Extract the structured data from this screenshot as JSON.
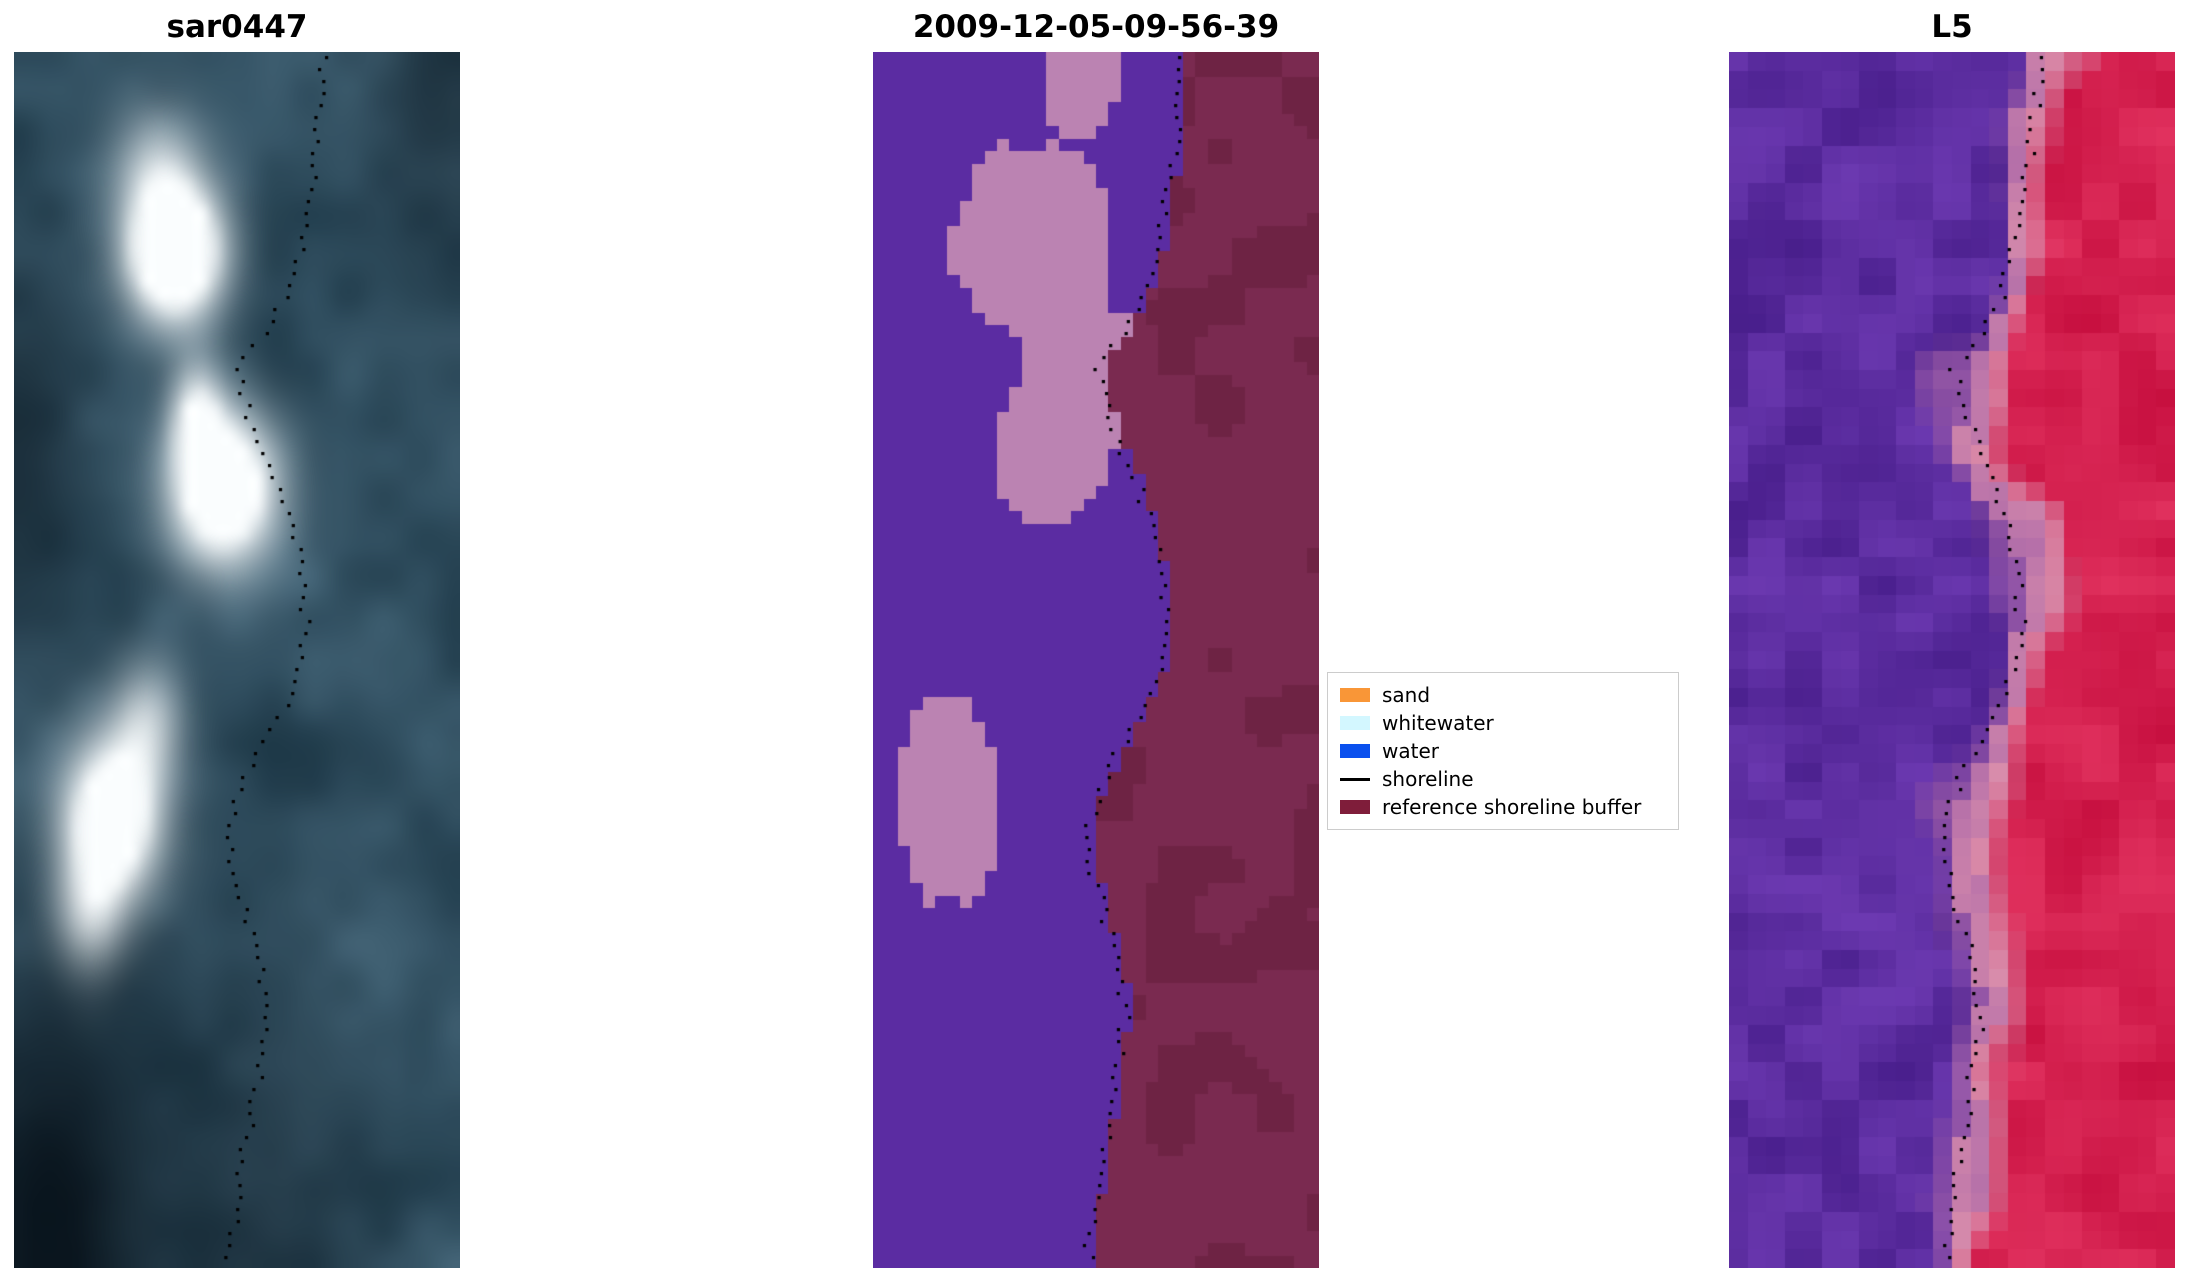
{
  "legend": {
    "items": [
      {
        "label": "sand",
        "color": "#f99637",
        "type": "patch"
      },
      {
        "label": "whitewater",
        "color": "#d3f7ff",
        "type": "patch"
      },
      {
        "label": "water",
        "color": "#0a50ee",
        "type": "patch"
      },
      {
        "label": "shoreline",
        "color": "#000000",
        "type": "line"
      },
      {
        "label": "reference shoreline buffer",
        "color": "#7f1d3a",
        "type": "patch"
      }
    ]
  },
  "chart_data": {
    "type": "heatmap",
    "subtype": "satellite-image-panels",
    "description": "Three vertical coastal image panels (SAR image, classified image, Landsat-5 image) sharing one dotted black shoreline overlay; legend between panels 2 and 3.",
    "shoreline": {
      "color": "#000000",
      "style": "dotted",
      "points": [
        [
          0.0,
          0.695
        ],
        [
          0.04,
          0.69
        ],
        [
          0.08,
          0.675
        ],
        [
          0.12,
          0.66
        ],
        [
          0.16,
          0.64
        ],
        [
          0.2,
          0.61
        ],
        [
          0.23,
          0.565
        ],
        [
          0.26,
          0.505
        ],
        [
          0.29,
          0.52
        ],
        [
          0.33,
          0.565
        ],
        [
          0.38,
          0.62
        ],
        [
          0.43,
          0.645
        ],
        [
          0.47,
          0.655
        ],
        [
          0.51,
          0.64
        ],
        [
          0.55,
          0.59
        ],
        [
          0.59,
          0.525
        ],
        [
          0.63,
          0.485
        ],
        [
          0.67,
          0.49
        ],
        [
          0.71,
          0.52
        ],
        [
          0.75,
          0.55
        ],
        [
          0.79,
          0.565
        ],
        [
          0.83,
          0.55
        ],
        [
          0.87,
          0.535
        ],
        [
          0.91,
          0.515
        ],
        [
          0.95,
          0.495
        ],
        [
          1.0,
          0.48
        ]
      ]
    },
    "panels": [
      {
        "title": "sar0447",
        "kind": "sar",
        "palette": {
          "dark": "#112a38",
          "light": "#4f7286",
          "bright": "#fafdfe"
        },
        "dark_spots": [
          {
            "u": 0.08,
            "v": 0.98,
            "r": 0.22,
            "w": 0.95
          },
          {
            "u": 0.0,
            "v": 0.33,
            "r": 0.16,
            "w": 0.5
          },
          {
            "u": 0.97,
            "v": 0.02,
            "r": 0.16,
            "w": 0.45
          },
          {
            "u": 0.55,
            "v": 1.0,
            "r": 0.25,
            "w": 0.4
          }
        ],
        "bright_blobs": [
          {
            "u": 0.36,
            "v": 0.165,
            "rx": 0.105,
            "ry": 0.055,
            "w": 1.8
          },
          {
            "u": 0.32,
            "v": 0.095,
            "rx": 0.1,
            "ry": 0.05,
            "w": 0.55
          },
          {
            "u": 0.47,
            "v": 0.36,
            "rx": 0.115,
            "ry": 0.06,
            "w": 1.6
          },
          {
            "u": 0.41,
            "v": 0.3,
            "rx": 0.06,
            "ry": 0.045,
            "w": 0.8
          },
          {
            "u": 0.22,
            "v": 0.63,
            "rx": 0.11,
            "ry": 0.065,
            "w": 1.45
          },
          {
            "u": 0.3,
            "v": 0.55,
            "rx": 0.08,
            "ry": 0.05,
            "w": 0.6
          },
          {
            "u": 0.17,
            "v": 0.71,
            "rx": 0.08,
            "ry": 0.05,
            "w": 0.6
          }
        ]
      },
      {
        "title": "2009-12-05-09-56-39",
        "kind": "classification",
        "colors": {
          "water": "#5b2ca2",
          "whitewater": "#bb83b2",
          "buffer": "#7a2a50",
          "buffer_dark": "#6e2344"
        },
        "buffer_edge_offset": 0.012,
        "whitewater_regions": [
          {
            "cu": 0.465,
            "cv": 0.02,
            "rx": 0.08,
            "ry": 0.055
          },
          {
            "cu": 0.36,
            "cv": 0.155,
            "rx": 0.185,
            "ry": 0.078
          },
          {
            "cu": 0.47,
            "cv": 0.265,
            "rx": 0.125,
            "ry": 0.08
          },
          {
            "cu": 0.4,
            "cv": 0.33,
            "rx": 0.14,
            "ry": 0.058
          },
          {
            "cu": 0.175,
            "cv": 0.615,
            "rx": 0.115,
            "ry": 0.088
          }
        ]
      },
      {
        "title": "L5",
        "kind": "rgb",
        "palette": {
          "purple_dark": "#471d8a",
          "purple_light": "#6d3ab2",
          "mauve": "#a05fa8",
          "pink": "#d88cab",
          "red_dark": "#c60e3e",
          "red_light": "#e23360"
        }
      }
    ]
  }
}
